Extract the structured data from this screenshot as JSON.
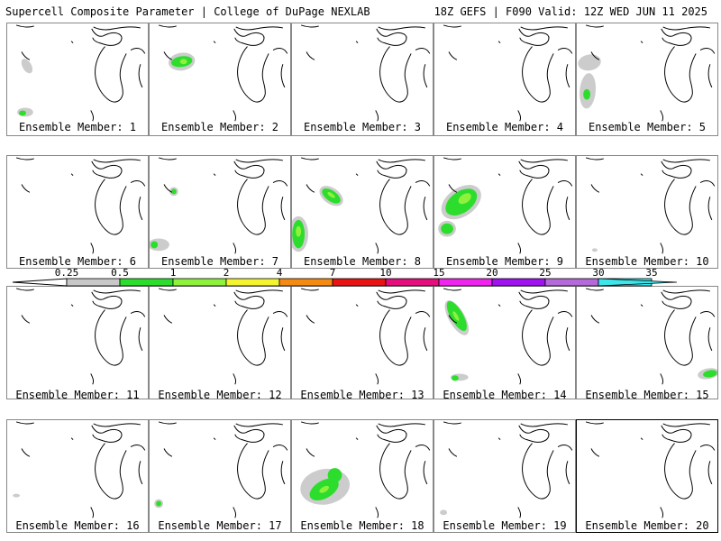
{
  "header": {
    "title_left": "Supercell Composite Parameter | College of DuPage NEXLAB",
    "title_right": "18Z GEFS | F090 Valid: 12Z WED JUN 11 2025"
  },
  "colorbar": {
    "tick_labels": [
      "0.25",
      "0.5",
      "1",
      "2",
      "4",
      "7",
      "10",
      "15",
      "20",
      "25",
      "30",
      "35"
    ],
    "colors": [
      "#c8c8c8",
      "#2ddd2d",
      "#8ef23c",
      "#f4f430",
      "#f58a12",
      "#e81414",
      "#e40f7d",
      "#f025ed",
      "#a012f0",
      "#b46ad9",
      "#3de6ea"
    ]
  },
  "panels": [
    {
      "label": "Ensemble Member: 1",
      "highlighted": false
    },
    {
      "label": "Ensemble Member: 2",
      "highlighted": false
    },
    {
      "label": "Ensemble Member: 3",
      "highlighted": false
    },
    {
      "label": "Ensemble Member: 4",
      "highlighted": false
    },
    {
      "label": "Ensemble Member: 5",
      "highlighted": false
    },
    {
      "label": "Ensemble Member: 6",
      "highlighted": false
    },
    {
      "label": "Ensemble Member: 7",
      "highlighted": false
    },
    {
      "label": "Ensemble Member: 8",
      "highlighted": false
    },
    {
      "label": "Ensemble Member: 9",
      "highlighted": false
    },
    {
      "label": "Ensemble Member: 10",
      "highlighted": false
    },
    {
      "label": "Ensemble Member: 11",
      "highlighted": false
    },
    {
      "label": "Ensemble Member: 12",
      "highlighted": false
    },
    {
      "label": "Ensemble Member: 13",
      "highlighted": false
    },
    {
      "label": "Ensemble Member: 14",
      "highlighted": false
    },
    {
      "label": "Ensemble Member: 15",
      "highlighted": false
    },
    {
      "label": "Ensemble Member: 16",
      "highlighted": false
    },
    {
      "label": "Ensemble Member: 17",
      "highlighted": false
    },
    {
      "label": "Ensemble Member: 18",
      "highlighted": false
    },
    {
      "label": "Ensemble Member: 19",
      "highlighted": false
    },
    {
      "label": "Ensemble Member: 20",
      "highlighted": true
    }
  ]
}
